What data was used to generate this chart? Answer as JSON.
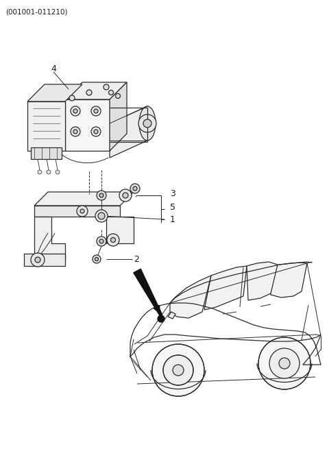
{
  "title": "(001001-011210)",
  "bg_color": "#ffffff",
  "line_color": "#2a2a2a",
  "label_color": "#1a1a1a",
  "figsize": [
    4.8,
    6.55
  ],
  "dpi": 100
}
